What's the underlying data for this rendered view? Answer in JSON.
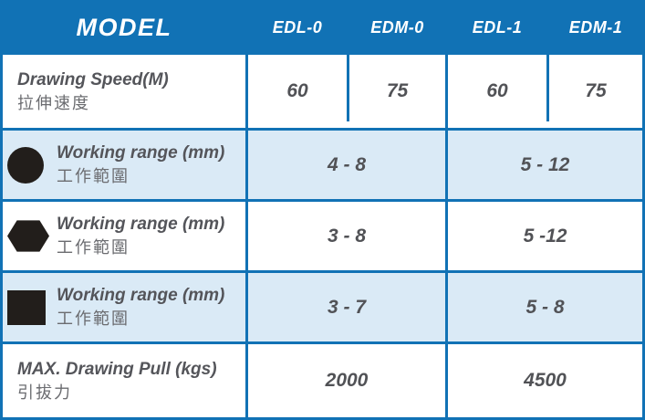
{
  "table": {
    "header": {
      "model_label": "MODEL",
      "columns": [
        "EDL-0",
        "EDM-0",
        "EDL-1",
        "EDM-1"
      ]
    },
    "rows": [
      {
        "label_en": "Drawing Speed(M)",
        "label_zh": "拉伸速度",
        "values": [
          "60",
          "75",
          "60",
          "75"
        ]
      },
      {
        "icon": "round-section",
        "label_en": "Working range (mm)",
        "label_zh": "工作範圍",
        "values": [
          "4 - 8",
          "5 - 12"
        ]
      },
      {
        "icon": "hexagon-section",
        "label_en": "Working range (mm)",
        "label_zh": "工作範圍",
        "values": [
          "3 - 8",
          "5 -12"
        ]
      },
      {
        "icon": "square-section",
        "label_en": "Working range (mm)",
        "label_zh": "工作範圍",
        "values": [
          "3 - 7",
          "5 - 8"
        ]
      },
      {
        "label_en": "MAX. Drawing Pull (kgs)",
        "label_zh": "引拔力",
        "values": [
          "2000",
          "4500"
        ]
      }
    ],
    "colors": {
      "header_bg": "#1172b5",
      "border": "#1172b5",
      "alt_row_bg": "#daeaf6",
      "cell_bg": "#ffffff",
      "header_text": "#ffffff",
      "label_text": "#54555a",
      "zh_text": "#6b6c70",
      "value_text": "#515256",
      "icon_color": "#221e1b"
    }
  }
}
